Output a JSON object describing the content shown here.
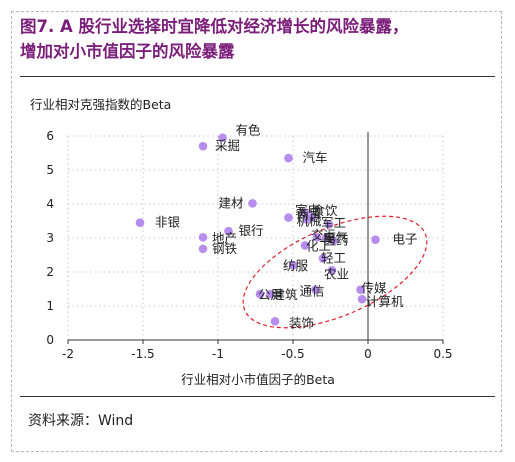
{
  "title_lines": [
    "图7. A 股行业选择时宜降低对经济增长的风险暴露，",
    "增加对小市值因子的风险暴露"
  ],
  "source": "资料来源：Wind",
  "chart_data": {
    "type": "scatter",
    "title": "",
    "xlabel": "行业相对小市值因子的Beta",
    "ylabel": "行业相对克强指数的Beta",
    "xlim": [
      -2,
      0.5
    ],
    "ylim": [
      0,
      6
    ],
    "xticks": [
      "-2",
      "-1.5",
      "-1",
      "-0.5",
      "0",
      "0.5"
    ],
    "xtick_values": [
      -2,
      -1.5,
      -1,
      -0.5,
      0,
      0.5
    ],
    "yticks": [
      "0",
      "1",
      "2",
      "3",
      "4",
      "5",
      "6"
    ],
    "ytick_values": [
      0,
      1,
      2,
      3,
      4,
      5,
      6
    ],
    "grid": "dotted",
    "highlight": "dashed ellipse around lower-right cluster",
    "point_color": "#b88df0",
    "highlight_color": "#e0202a",
    "points": [
      {
        "label": "有色",
        "x": -0.97,
        "y": 5.95
      },
      {
        "label": "采掘",
        "x": -1.1,
        "y": 5.7
      },
      {
        "label": "汽车",
        "x": -0.53,
        "y": 5.35
      },
      {
        "label": "非银",
        "x": -1.52,
        "y": 3.45
      },
      {
        "label": "建材",
        "x": -0.77,
        "y": 4.02
      },
      {
        "label": "家电",
        "x": -0.42,
        "y": 3.75
      },
      {
        "label": "食饮",
        "x": -0.37,
        "y": 3.62
      },
      {
        "label": "商贸",
        "x": -0.53,
        "y": 3.6
      },
      {
        "label": "机械",
        "x": -0.41,
        "y": 3.55
      },
      {
        "label": "军工",
        "x": -0.26,
        "y": 3.4
      },
      {
        "label": "银行",
        "x": -0.93,
        "y": 3.2
      },
      {
        "label": "地产",
        "x": -1.1,
        "y": 3.02
      },
      {
        "label": "钢铁",
        "x": -1.1,
        "y": 2.68
      },
      {
        "label": "化工",
        "x": -0.42,
        "y": 2.78
      },
      {
        "label": "交运",
        "x": -0.34,
        "y": 3.02
      },
      {
        "label": "电气",
        "x": -0.28,
        "y": 3.0
      },
      {
        "label": "医药",
        "x": -0.23,
        "y": 2.92
      },
      {
        "label": "电子",
        "x": 0.05,
        "y": 2.95
      },
      {
        "label": "纺服",
        "x": -0.5,
        "y": 2.2
      },
      {
        "label": "轻工",
        "x": -0.3,
        "y": 2.4
      },
      {
        "label": "农业",
        "x": -0.24,
        "y": 2.05
      },
      {
        "label": "公用",
        "x": -0.72,
        "y": 1.35
      },
      {
        "label": "建筑",
        "x": -0.65,
        "y": 1.35
      },
      {
        "label": "通信",
        "x": -0.35,
        "y": 1.48
      },
      {
        "label": "传媒",
        "x": -0.05,
        "y": 1.48
      },
      {
        "label": "计算机",
        "x": -0.04,
        "y": 1.2
      },
      {
        "label": "装饰",
        "x": -0.62,
        "y": 0.55
      }
    ]
  }
}
